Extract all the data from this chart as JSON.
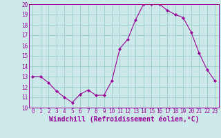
{
  "x": [
    0,
    1,
    2,
    3,
    4,
    5,
    6,
    7,
    8,
    9,
    10,
    11,
    12,
    13,
    14,
    15,
    16,
    17,
    18,
    19,
    20,
    21,
    22,
    23
  ],
  "y": [
    13.0,
    13.0,
    12.4,
    11.6,
    11.0,
    10.5,
    11.3,
    11.7,
    11.2,
    11.2,
    12.6,
    15.7,
    16.6,
    18.5,
    20.0,
    20.0,
    20.0,
    19.4,
    19.0,
    18.7,
    17.3,
    15.3,
    13.7,
    12.6
  ],
  "xlim": [
    -0.5,
    23.5
  ],
  "ylim": [
    10,
    20
  ],
  "yticks": [
    10,
    11,
    12,
    13,
    14,
    15,
    16,
    17,
    18,
    19,
    20
  ],
  "xticks": [
    0,
    1,
    2,
    3,
    4,
    5,
    6,
    7,
    8,
    9,
    10,
    11,
    12,
    13,
    14,
    15,
    16,
    17,
    18,
    19,
    20,
    21,
    22,
    23
  ],
  "xlabel": "Windchill (Refroidissement éolien,°C)",
  "line_color": "#990099",
  "marker_color": "#990099",
  "bg_color": "#cce8e8",
  "grid_color": "#99cccc",
  "tick_label_color": "#990099",
  "axis_label_color": "#990099",
  "tick_fontsize": 5.5,
  "xlabel_fontsize": 7.0
}
